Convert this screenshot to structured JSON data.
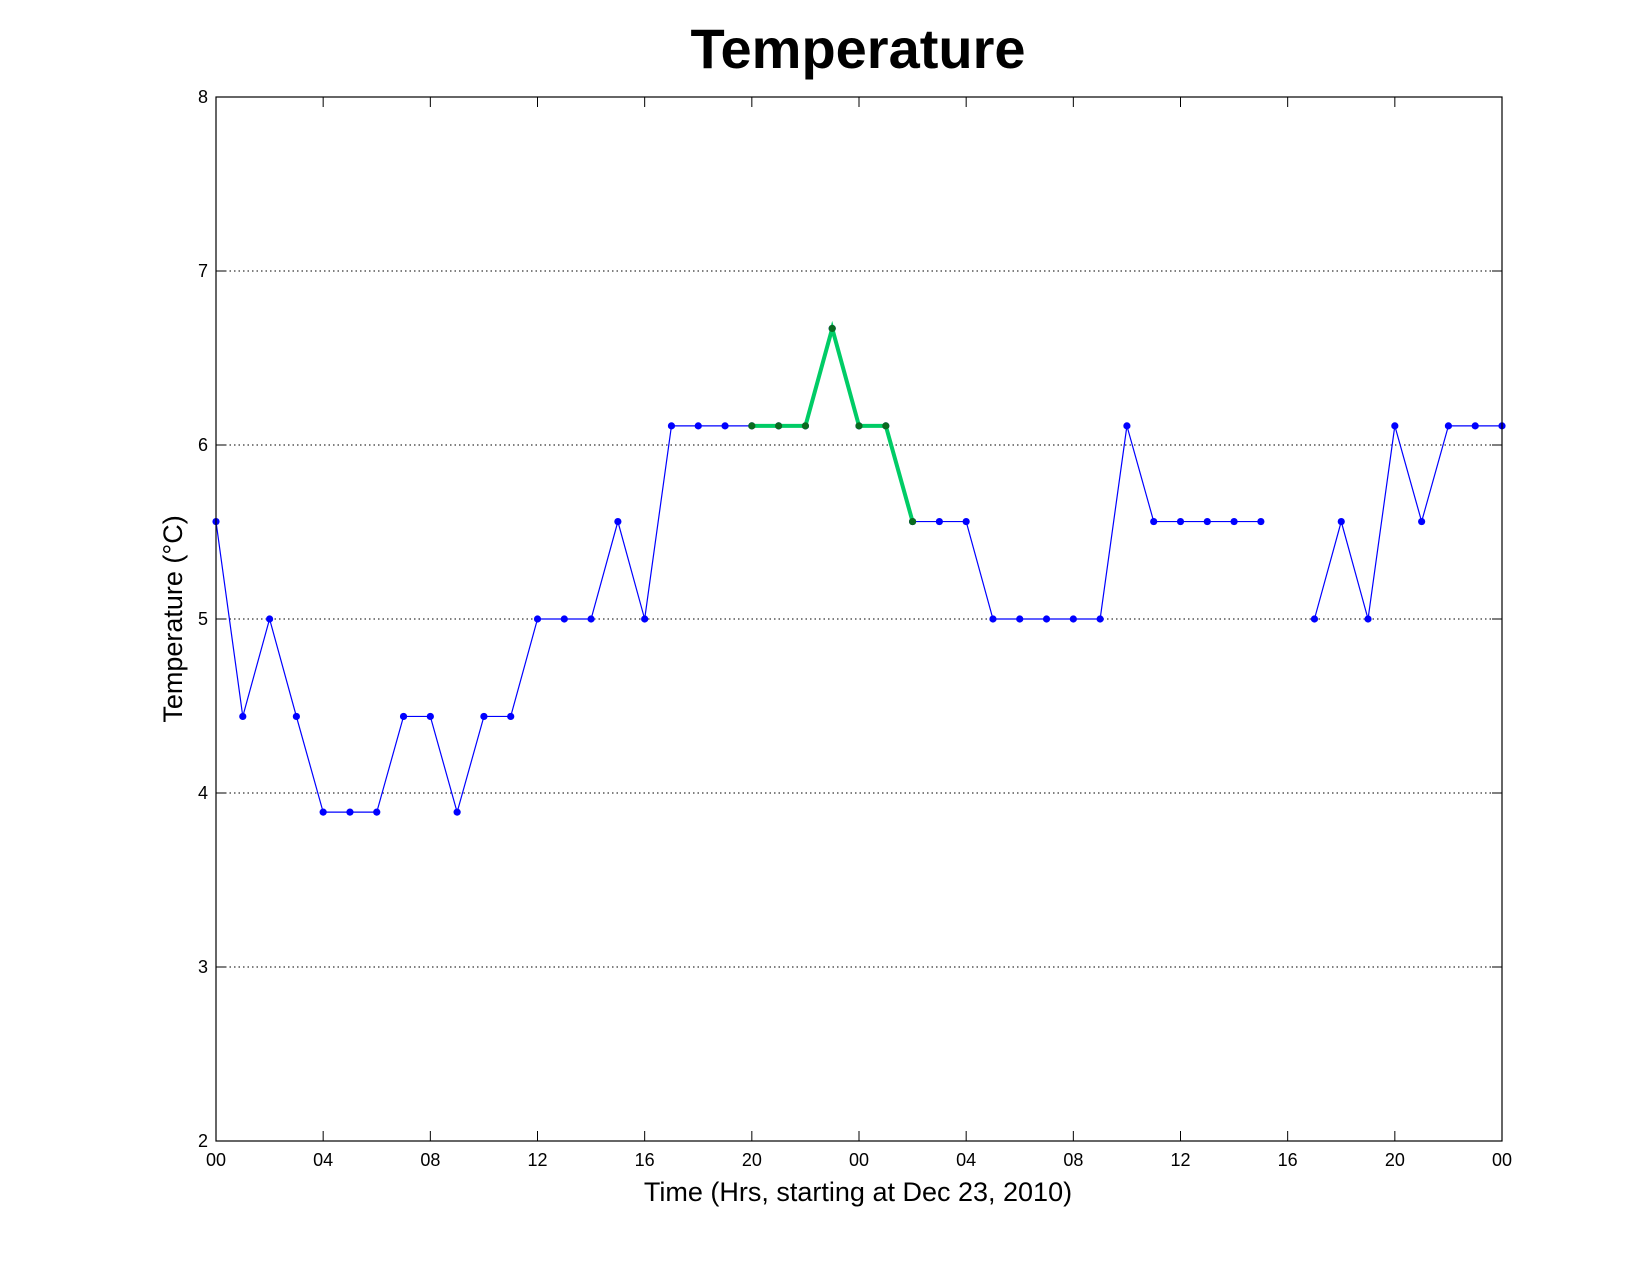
{
  "chart_data": {
    "type": "line",
    "title": "Temperature",
    "xlabel": "Time (Hrs, starting at Dec 23, 2010)",
    "ylabel": "Temperature (°C)",
    "x_unit": "hours",
    "xlim": [
      0,
      48
    ],
    "ylim": [
      2,
      8
    ],
    "x_ticks": [
      0,
      4,
      8,
      12,
      16,
      20,
      24,
      28,
      32,
      36,
      40,
      44,
      48
    ],
    "x_tick_labels": [
      "00",
      "04",
      "08",
      "12",
      "16",
      "20",
      "00",
      "04",
      "08",
      "12",
      "16",
      "20",
      "00"
    ],
    "y_ticks": [
      2,
      3,
      4,
      5,
      6,
      7,
      8
    ],
    "y_tick_labels": [
      "2",
      "3",
      "4",
      "5",
      "6",
      "7",
      "8"
    ],
    "grid": "horizontal dotted",
    "series": [
      {
        "color": "#0000ff",
        "x": [
          0,
          1,
          2,
          3,
          4,
          5,
          6,
          7,
          8,
          9,
          10,
          11,
          12,
          13,
          14,
          15,
          16,
          17,
          18,
          19,
          20,
          21,
          22,
          23,
          24,
          25,
          26,
          27,
          28,
          29,
          30,
          31,
          32,
          33,
          34,
          35,
          36,
          37,
          38,
          39,
          40,
          41,
          42,
          43,
          44,
          45,
          46,
          47,
          48
        ],
        "y": [
          5.56,
          4.44,
          5.0,
          4.44,
          3.89,
          3.89,
          3.89,
          4.44,
          4.44,
          3.89,
          4.44,
          4.44,
          5.0,
          5.0,
          5.0,
          5.56,
          5.0,
          6.11,
          6.11,
          6.11,
          6.11,
          6.11,
          6.11,
          6.67,
          6.11,
          6.11,
          5.56,
          5.56,
          5.56,
          5.0,
          5.0,
          5.0,
          5.0,
          5.0,
          6.11,
          5.56,
          5.56,
          5.56,
          5.56,
          5.56,
          null,
          5.0,
          5.56,
          5.0,
          6.11,
          5.56,
          6.11,
          6.11,
          6.11
        ]
      },
      {
        "color": "#00cc66",
        "x": [
          20,
          21,
          22,
          23,
          24,
          25,
          26
        ],
        "y": [
          6.11,
          6.11,
          6.11,
          6.67,
          6.11,
          6.11,
          5.56
        ]
      }
    ]
  }
}
